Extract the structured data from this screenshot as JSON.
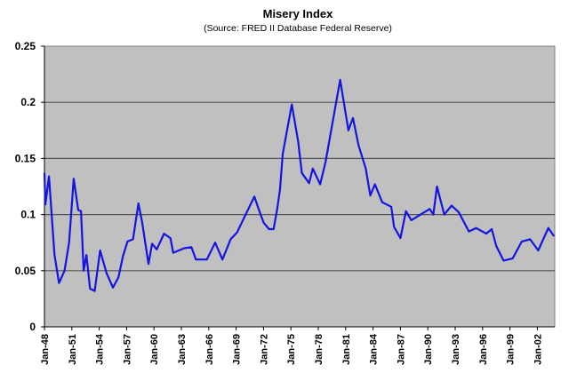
{
  "chart_data": {
    "type": "line",
    "title": "Misery Index",
    "subtitle": "(Source: FRED II Database Federal Reserve)",
    "xlabel": "",
    "ylabel": "",
    "ylim": [
      0,
      0.25
    ],
    "xlim": [
      1948,
      2003.9
    ],
    "yticks": [
      "0",
      "0.05",
      "0.1",
      "0.15",
      "0.2",
      "0.25"
    ],
    "ytick_values": [
      0,
      0.05,
      0.1,
      0.15,
      0.2,
      0.25
    ],
    "xticks": [
      "Jan-48",
      "Jan-51",
      "Jan-54",
      "Jan-57",
      "Jan-60",
      "Jan-63",
      "Jan-66",
      "Jan-69",
      "Jan-72",
      "Jan-75",
      "Jan-78",
      "Jan-81",
      "Jan-84",
      "Jan-87",
      "Jan-90",
      "Jan-93",
      "Jan-96",
      "Jan-99",
      "Jan-02"
    ],
    "xtick_values": [
      1948,
      1951,
      1954,
      1957,
      1960,
      1963,
      1966,
      1969,
      1972,
      1975,
      1978,
      1981,
      1984,
      1987,
      1990,
      1993,
      1996,
      1999,
      2002
    ],
    "grid": true,
    "legend": "none",
    "colors": {
      "line": "#1414e0",
      "plot_bg": "#c0c0c0",
      "grid": "#555555"
    },
    "series": [
      {
        "name": "Misery Index",
        "x": [
          1948.0,
          1948.1,
          1948.5,
          1949.1,
          1949.6,
          1950.2,
          1950.7,
          1951.2,
          1951.7,
          1952.0,
          1952.3,
          1952.6,
          1953.0,
          1953.5,
          1954.1,
          1954.8,
          1955.5,
          1956.1,
          1956.6,
          1957.1,
          1957.7,
          1958.3,
          1958.7,
          1959.4,
          1959.8,
          1960.3,
          1961.1,
          1961.8,
          1962.1,
          1963.3,
          1964.1,
          1964.6,
          1965.8,
          1966.7,
          1967.5,
          1968.4,
          1969.1,
          1970.1,
          1971.0,
          1971.5,
          1972.0,
          1972.6,
          1973.1,
          1973.5,
          1973.8,
          1974.1,
          1975.1,
          1975.8,
          1976.2,
          1977.0,
          1977.4,
          1978.2,
          1978.8,
          1980.4,
          1981.3,
          1981.8,
          1982.4,
          1983.2,
          1983.7,
          1984.2,
          1985.0,
          1986.0,
          1986.3,
          1987.0,
          1987.6,
          1988.2,
          1989.2,
          1990.2,
          1990.6,
          1991.0,
          1991.8,
          1992.6,
          1993.4,
          1994.5,
          1995.3,
          1996.4,
          1997.0,
          1997.5,
          1998.3,
          1999.3,
          2000.3,
          2001.2,
          2002.1,
          2003.2,
          2003.8
        ],
        "values": [
          0.137,
          0.109,
          0.134,
          0.064,
          0.039,
          0.05,
          0.075,
          0.132,
          0.104,
          0.103,
          0.05,
          0.064,
          0.034,
          0.032,
          0.068,
          0.048,
          0.035,
          0.044,
          0.063,
          0.076,
          0.078,
          0.11,
          0.093,
          0.056,
          0.074,
          0.069,
          0.083,
          0.079,
          0.066,
          0.07,
          0.071,
          0.06,
          0.06,
          0.075,
          0.06,
          0.078,
          0.084,
          0.101,
          0.116,
          0.104,
          0.093,
          0.087,
          0.087,
          0.105,
          0.122,
          0.154,
          0.198,
          0.165,
          0.137,
          0.128,
          0.141,
          0.127,
          0.147,
          0.22,
          0.175,
          0.186,
          0.162,
          0.141,
          0.117,
          0.127,
          0.111,
          0.107,
          0.089,
          0.079,
          0.103,
          0.095,
          0.1,
          0.105,
          0.1,
          0.125,
          0.1,
          0.108,
          0.102,
          0.085,
          0.088,
          0.083,
          0.087,
          0.072,
          0.059,
          0.061,
          0.076,
          0.078,
          0.068,
          0.088,
          0.081
        ]
      }
    ]
  }
}
